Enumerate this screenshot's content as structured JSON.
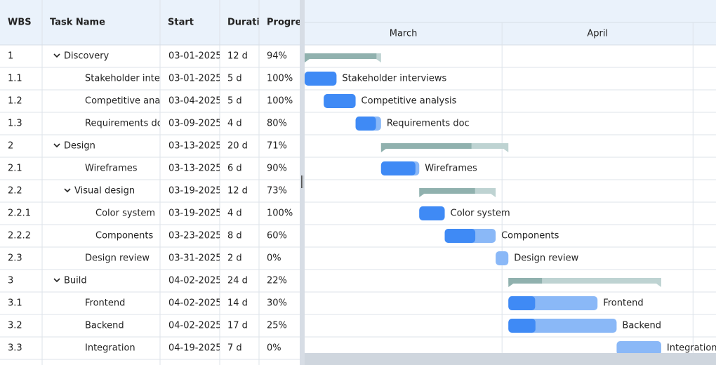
{
  "grid": {
    "columns": [
      "WBS",
      "Task Name",
      "Start",
      "Duration",
      "Progress"
    ]
  },
  "timeline": {
    "months": [
      "March",
      "April"
    ]
  },
  "rows": [
    {
      "wbs": "1",
      "name": "Discovery",
      "start": "03-01-2025",
      "duration": "12 d",
      "progress": "94%"
    },
    {
      "wbs": "1.1",
      "name": "Stakeholder interviews",
      "start": "03-01-2025",
      "duration": "5 d",
      "progress": "100%"
    },
    {
      "wbs": "1.2",
      "name": "Competitive analysis",
      "start": "03-04-2025",
      "duration": "5 d",
      "progress": "100%"
    },
    {
      "wbs": "1.3",
      "name": "Requirements doc",
      "start": "03-09-2025",
      "duration": "4 d",
      "progress": "80%"
    },
    {
      "wbs": "2",
      "name": "Design",
      "start": "03-13-2025",
      "duration": "20 d",
      "progress": "71%"
    },
    {
      "wbs": "2.1",
      "name": "Wireframes",
      "start": "03-13-2025",
      "duration": "6 d",
      "progress": "90%"
    },
    {
      "wbs": "2.2",
      "name": "Visual design",
      "start": "03-19-2025",
      "duration": "12 d",
      "progress": "73%"
    },
    {
      "wbs": "2.2.1",
      "name": "Color system",
      "start": "03-19-2025",
      "duration": "4 d",
      "progress": "100%"
    },
    {
      "wbs": "2.2.2",
      "name": "Components",
      "start": "03-23-2025",
      "duration": "8 d",
      "progress": "60%"
    },
    {
      "wbs": "2.3",
      "name": "Design review",
      "start": "03-31-2025",
      "duration": "2 d",
      "progress": "0%"
    },
    {
      "wbs": "3",
      "name": "Build",
      "start": "04-02-2025",
      "duration": "24 d",
      "progress": "22%"
    },
    {
      "wbs": "3.1",
      "name": "Frontend",
      "start": "04-02-2025",
      "duration": "14 d",
      "progress": "30%"
    },
    {
      "wbs": "3.2",
      "name": "Backend",
      "start": "04-02-2025",
      "duration": "17 d",
      "progress": "25%"
    },
    {
      "wbs": "3.3",
      "name": "Integration",
      "start": "04-19-2025",
      "duration": "7 d",
      "progress": "0%"
    }
  ]
}
